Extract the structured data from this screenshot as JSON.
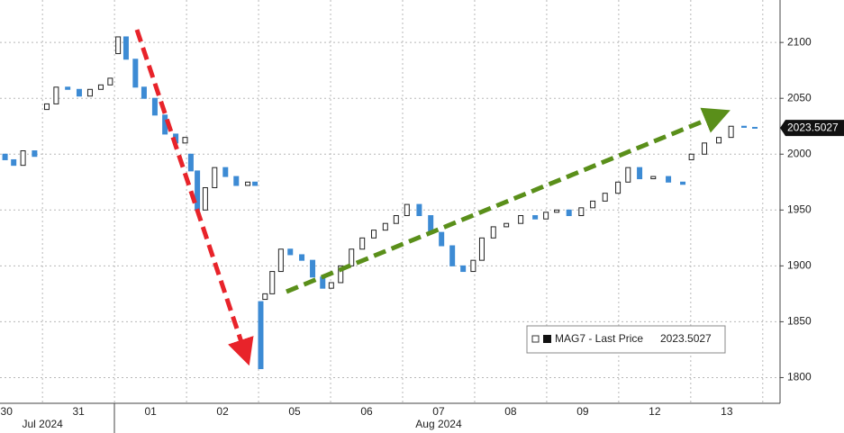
{
  "chart_data": {
    "type": "candlestick",
    "series_name": "MAG7 - Last Price",
    "last_price": 2023.5027,
    "up_color": "#ffffff",
    "down_color": "#3d8bd4",
    "grid": true,
    "xlim": [
      0.41,
      11.24
    ],
    "xticks": [
      {
        "value": 0.5,
        "label": "30"
      },
      {
        "value": 1.5,
        "label": "31"
      },
      {
        "value": 2.5,
        "label": "01"
      },
      {
        "value": 3.5,
        "label": "02"
      },
      {
        "value": 4.5,
        "label": "05"
      },
      {
        "value": 5.5,
        "label": "06"
      },
      {
        "value": 6.5,
        "label": "07"
      },
      {
        "value": 7.5,
        "label": "08"
      },
      {
        "value": 8.5,
        "label": "09"
      },
      {
        "value": 9.5,
        "label": "12"
      },
      {
        "value": 10.5,
        "label": "13"
      }
    ],
    "months": [
      {
        "value": 1.0,
        "label": "Jul 2024"
      },
      {
        "value": 6.5,
        "label": "Aug 2024"
      }
    ],
    "ylim": [
      1777,
      2138
    ],
    "yticks": [
      1800,
      1850,
      1900,
      1950,
      2000,
      2050,
      2100
    ],
    "x": [
      0.48,
      0.6,
      0.73,
      0.89,
      1.06,
      1.19,
      1.35,
      1.51,
      1.66,
      1.81,
      1.94,
      2.05,
      2.16,
      2.29,
      2.41,
      2.56,
      2.7,
      2.85,
      2.98,
      3.06,
      3.15,
      3.26,
      3.39,
      3.54,
      3.69,
      3.85,
      3.95,
      4.03,
      4.09,
      4.19,
      4.31,
      4.44,
      4.6,
      4.75,
      4.89,
      5.01,
      5.14,
      5.29,
      5.44,
      5.6,
      5.76,
      5.91,
      6.06,
      6.23,
      6.39,
      6.54,
      6.69,
      6.84,
      6.98,
      7.1,
      7.26,
      7.44,
      7.64,
      7.84,
      7.99,
      8.14,
      8.31,
      8.48,
      8.64,
      8.81,
      8.99,
      9.13,
      9.29,
      9.48,
      9.69,
      9.89,
      10.01,
      10.19,
      10.39,
      10.56,
      10.74,
      10.89
    ],
    "open": [
      2000,
      1995,
      1990,
      2003,
      2040,
      2045,
      2060,
      2058,
      2052,
      2058,
      2062,
      2090,
      2105,
      2085,
      2060,
      2050,
      2035,
      2018,
      2010,
      2000,
      1985,
      1950,
      1970,
      1988,
      1980,
      1972,
      1975,
      1868,
      1870,
      1875,
      1895,
      1915,
      1910,
      1905,
      1890,
      1880,
      1885,
      1900,
      1915,
      1925,
      1932,
      1938,
      1945,
      1955,
      1945,
      1930,
      1918,
      1900,
      1895,
      1905,
      1925,
      1935,
      1938,
      1945,
      1942,
      1948,
      1950,
      1945,
      1952,
      1958,
      1965,
      1975,
      1988,
      1978,
      1980,
      1975,
      1995,
      2000,
      2010,
      2015,
      2025,
      2024
    ],
    "close": [
      1995,
      1990,
      2003,
      1998,
      2045,
      2060,
      2058,
      2052,
      2058,
      2062,
      2068,
      2105,
      2085,
      2060,
      2050,
      2035,
      2018,
      2010,
      2015,
      1985,
      1950,
      1970,
      1988,
      1980,
      1972,
      1975,
      1972,
      1808,
      1875,
      1895,
      1915,
      1910,
      1905,
      1890,
      1880,
      1885,
      1900,
      1915,
      1925,
      1932,
      1938,
      1945,
      1955,
      1945,
      1930,
      1918,
      1900,
      1895,
      1905,
      1925,
      1935,
      1938,
      1945,
      1942,
      1948,
      1950,
      1945,
      1952,
      1958,
      1965,
      1975,
      1988,
      1978,
      1980,
      1975,
      1973,
      2000,
      2010,
      2015,
      2025,
      2024,
      2023.5
    ]
  }
}
